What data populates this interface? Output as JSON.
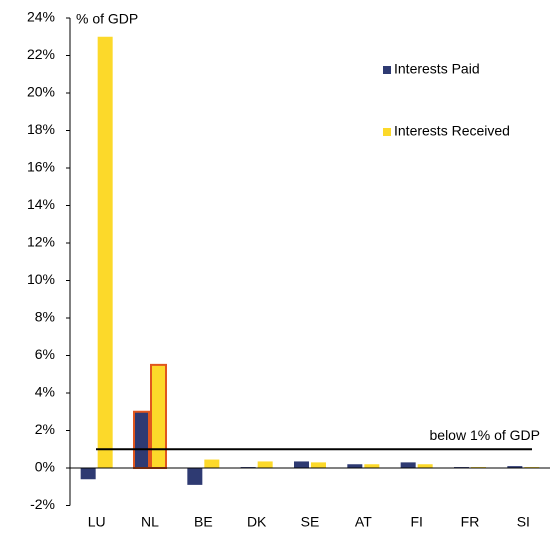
{
  "chart_data": {
    "type": "bar",
    "y_label": "% of GDP",
    "categories": [
      "LU",
      "NL",
      "BE",
      "DK",
      "SE",
      "AT",
      "FI",
      "FR",
      "SI"
    ],
    "series": [
      {
        "name": "Interests  Paid",
        "color": "#2e3a72",
        "values": [
          -0.6,
          3.0,
          -0.9,
          0.05,
          0.35,
          0.2,
          0.3,
          0.05,
          0.1
        ]
      },
      {
        "name": "Interests  Received",
        "color": "#fcd92a",
        "values": [
          23.0,
          5.5,
          0.45,
          0.35,
          0.3,
          0.2,
          0.2,
          0.05,
          0.05
        ]
      }
    ],
    "ylim": [
      -2,
      24
    ],
    "yticks": [
      {
        "value": -2,
        "label": "-2%"
      },
      {
        "value": 0,
        "label": "0%"
      },
      {
        "value": 2,
        "label": "2%"
      },
      {
        "value": 4,
        "label": "4%"
      },
      {
        "value": 6,
        "label": "6%"
      },
      {
        "value": 8,
        "label": "8%"
      },
      {
        "value": 10,
        "label": "10%"
      },
      {
        "value": 12,
        "label": "12%"
      },
      {
        "value": 14,
        "label": "14%"
      },
      {
        "value": 16,
        "label": "16%"
      },
      {
        "value": 18,
        "label": "18%"
      },
      {
        "value": 20,
        "label": "20%"
      },
      {
        "value": 22,
        "label": "22%"
      },
      {
        "value": 24,
        "label": "24%"
      }
    ],
    "reference_line": {
      "value": 1,
      "label": "below 1% of GDP"
    },
    "highlight_category": "NL",
    "highlight_color": "#e0561e",
    "legend": "top-right",
    "grid": false
  }
}
